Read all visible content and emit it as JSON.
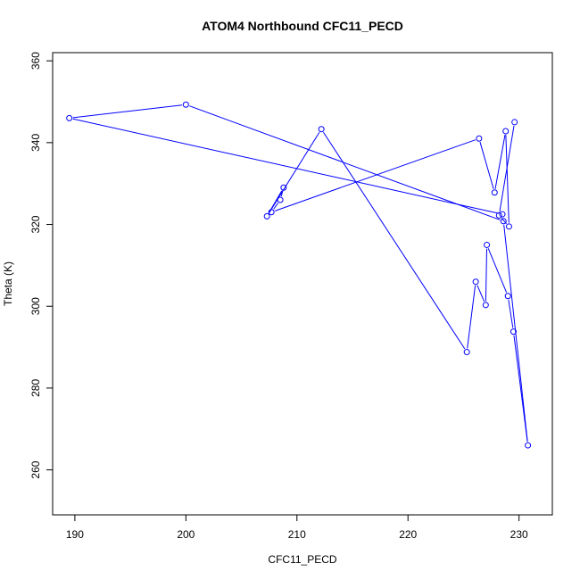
{
  "chart_data": {
    "type": "line",
    "title": "ATOM4 Northbound CFC11_PECD",
    "xlabel": "CFC11_PECD",
    "ylabel": "Theta (K)",
    "xlim": [
      188,
      233
    ],
    "ylim": [
      249,
      362
    ],
    "xticks": [
      190,
      200,
      210,
      220,
      230
    ],
    "yticks": [
      260,
      280,
      300,
      320,
      340,
      360
    ],
    "grid": false,
    "legend": "none",
    "series_color": "#0000ff",
    "series": [
      {
        "points": [
          {
            "x": 228.5,
            "y": 322.5
          },
          {
            "x": 189.5,
            "y": 346.0
          },
          {
            "x": 200.0,
            "y": 349.3
          },
          {
            "x": 228.6,
            "y": 320.8
          },
          {
            "x": 230.8,
            "y": 266.0
          },
          {
            "x": 229.5,
            "y": 293.8
          },
          {
            "x": 229.0,
            "y": 302.5
          },
          {
            "x": 227.1,
            "y": 315.0
          },
          {
            "x": 227.0,
            "y": 300.3
          },
          {
            "x": 226.1,
            "y": 306.0
          },
          {
            "x": 225.3,
            "y": 288.8
          },
          {
            "x": 212.2,
            "y": 343.3
          },
          {
            "x": 207.3,
            "y": 322.0
          },
          {
            "x": 208.8,
            "y": 329.0
          },
          {
            "x": 208.5,
            "y": 326.0
          },
          {
            "x": 207.7,
            "y": 323.0
          },
          {
            "x": 226.4,
            "y": 341.0
          },
          {
            "x": 227.8,
            "y": 327.8
          },
          {
            "x": 228.8,
            "y": 342.8
          },
          {
            "x": 229.1,
            "y": 319.5
          },
          {
            "x": 228.2,
            "y": 322.2
          },
          {
            "x": 229.6,
            "y": 345.0
          }
        ]
      }
    ]
  }
}
